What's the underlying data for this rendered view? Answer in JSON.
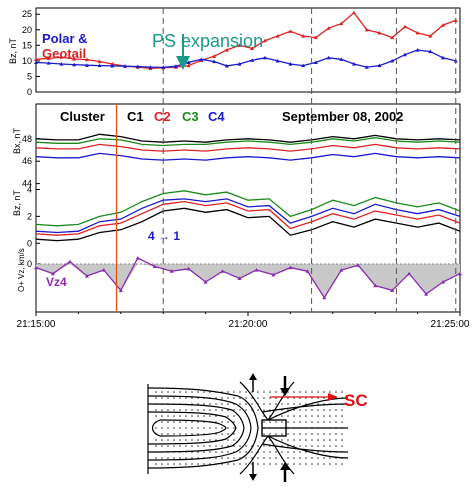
{
  "chart_data": [
    {
      "type": "line",
      "panel": "top",
      "ylabel": "Bz, nT",
      "yticks": [
        "0",
        "5",
        "10",
        "15",
        "20",
        "25"
      ],
      "ylim": [
        0,
        27
      ],
      "legend": [
        {
          "name": "Polar &",
          "color": "#1a1acc"
        },
        {
          "name": "Geotail",
          "color": "#dd2222"
        }
      ],
      "annotation": "PS expansion",
      "arrow_color": "#1a9a8a",
      "series": [
        {
          "name": "Geotail",
          "color": "#dd2222",
          "marker": "triangle",
          "x": [
            0,
            0.3,
            0.6,
            0.9,
            1.2,
            1.5,
            1.8,
            2.1,
            2.4,
            2.7,
            3.0,
            3.3,
            3.6,
            3.9,
            4.2,
            4.5,
            4.8,
            5.1,
            5.4,
            5.7,
            6.0,
            6.3,
            6.6,
            6.9,
            7.2,
            7.5,
            7.8,
            8.1,
            8.4,
            8.7,
            9.0,
            9.3,
            9.6,
            9.9
          ],
          "values": [
            10.5,
            10.8,
            11.2,
            10.6,
            10.4,
            9.8,
            9.0,
            8.3,
            8.0,
            7.6,
            7.8,
            8.0,
            8.5,
            10.2,
            11.5,
            13.5,
            15.0,
            14.0,
            16.5,
            18.0,
            19.5,
            18.0,
            17.5,
            20.5,
            22.0,
            25.5,
            20.0,
            19.0,
            17.5,
            21.0,
            19.0,
            18.0,
            21.5,
            23.0
          ]
        },
        {
          "name": "Polar",
          "color": "#1a1acc",
          "marker": "triangle",
          "x": [
            0,
            0.3,
            0.6,
            0.9,
            1.2,
            1.5,
            1.8,
            2.1,
            2.4,
            2.7,
            3.0,
            3.3,
            3.6,
            3.9,
            4.2,
            4.5,
            4.8,
            5.1,
            5.4,
            5.7,
            6.0,
            6.3,
            6.6,
            6.9,
            7.2,
            7.5,
            7.8,
            8.1,
            8.4,
            8.7,
            9.0,
            9.3,
            9.6,
            9.9
          ],
          "values": [
            9.5,
            9.3,
            9.0,
            8.8,
            8.6,
            8.5,
            8.4,
            8.3,
            8.2,
            8.0,
            7.9,
            8.3,
            9.5,
            10.5,
            9.8,
            8.4,
            9.0,
            10.2,
            11.0,
            10.0,
            9.0,
            8.5,
            9.5,
            11.0,
            10.5,
            9.0,
            8.0,
            8.5,
            10.0,
            12.0,
            13.5,
            13.0,
            11.0,
            10.0
          ]
        }
      ]
    },
    {
      "type": "line",
      "panel": "Bx",
      "title": "Cluster",
      "date": "September  08,  2002",
      "ylabel": "Bx, nT",
      "yticks": [
        "44",
        "46",
        "48"
      ],
      "ylim": [
        44.5,
        49.5
      ],
      "legend": [
        {
          "name": "C1",
          "color": "#000000"
        },
        {
          "name": "C2",
          "color": "#dd2222"
        },
        {
          "name": "C3",
          "color": "#1a8a1a"
        },
        {
          "name": "C4",
          "color": "#1a1acc"
        }
      ],
      "series": [
        {
          "name": "C1",
          "color": "#000000",
          "x": [
            0,
            0.5,
            1,
            1.5,
            2,
            2.5,
            3,
            3.5,
            4,
            4.5,
            5,
            5.5,
            6,
            6.5,
            7,
            7.5,
            8,
            8.5,
            9,
            9.5,
            10
          ],
          "values": [
            48.0,
            47.9,
            47.9,
            48.4,
            48.2,
            47.8,
            47.7,
            47.8,
            47.7,
            47.9,
            48.0,
            47.9,
            47.7,
            47.9,
            48.2,
            48.0,
            48.3,
            48.0,
            47.9,
            48.0,
            47.9
          ]
        },
        {
          "name": "C2",
          "color": "#dd2222",
          "x": [
            0,
            0.5,
            1,
            1.5,
            2,
            2.5,
            3,
            3.5,
            4,
            4.5,
            5,
            5.5,
            6,
            6.5,
            7,
            7.5,
            8,
            8.5,
            9,
            9.5,
            10
          ],
          "values": [
            47.2,
            47.1,
            47.1,
            47.5,
            47.3,
            47.0,
            46.9,
            47.0,
            46.9,
            47.1,
            47.2,
            47.1,
            46.9,
            47.1,
            47.4,
            47.2,
            47.5,
            47.2,
            47.1,
            47.2,
            47.1
          ]
        },
        {
          "name": "C3",
          "color": "#1a8a1a",
          "x": [
            0,
            0.5,
            1,
            1.5,
            2,
            2.5,
            3,
            3.5,
            4,
            4.5,
            5,
            5.5,
            6,
            6.5,
            7,
            7.5,
            8,
            8.5,
            9,
            9.5,
            10
          ],
          "values": [
            47.7,
            47.6,
            47.6,
            48.0,
            47.9,
            47.5,
            47.4,
            47.5,
            47.5,
            47.7,
            47.8,
            47.7,
            47.5,
            47.7,
            48.0,
            47.8,
            48.1,
            47.8,
            47.7,
            47.8,
            47.7
          ]
        },
        {
          "name": "C4",
          "color": "#1a1acc",
          "x": [
            0,
            0.5,
            1,
            1.5,
            2,
            2.5,
            3,
            3.5,
            4,
            4.5,
            5,
            5.5,
            6,
            6.5,
            7,
            7.5,
            8,
            8.5,
            9,
            9.5,
            10
          ],
          "values": [
            46.4,
            46.3,
            46.3,
            46.7,
            46.5,
            46.2,
            46.1,
            46.2,
            46.1,
            46.3,
            46.4,
            46.3,
            46.1,
            46.3,
            46.6,
            46.4,
            46.7,
            46.4,
            46.3,
            46.4,
            46.3
          ]
        }
      ]
    },
    {
      "type": "line",
      "panel": "Bz",
      "ylabel": "Bz, nT",
      "yticks": [
        "0",
        "2",
        "4"
      ],
      "ylim": [
        -0.5,
        5
      ],
      "annotation": "4 → 1",
      "series": [
        {
          "name": "C1",
          "color": "#000000",
          "x": [
            0,
            0.5,
            1,
            1.5,
            2,
            2.5,
            3,
            3.5,
            4,
            4.5,
            5,
            5.5,
            6,
            6.5,
            7,
            7.5,
            8,
            8.5,
            9,
            9.5,
            10
          ],
          "values": [
            0.3,
            0.2,
            0.3,
            0.8,
            1.0,
            1.6,
            2.4,
            2.6,
            2.3,
            2.5,
            1.9,
            2.0,
            0.6,
            1.0,
            1.6,
            1.2,
            1.8,
            1.5,
            1.2,
            1.5,
            0.9
          ]
        },
        {
          "name": "C2",
          "color": "#dd2222",
          "x": [
            0,
            0.5,
            1,
            1.5,
            2,
            2.5,
            3,
            3.5,
            4,
            4.5,
            5,
            5.5,
            6,
            6.5,
            7,
            7.5,
            8,
            8.5,
            9,
            9.5,
            10
          ],
          "values": [
            0.7,
            0.6,
            0.7,
            1.3,
            1.5,
            2.2,
            2.9,
            3.1,
            2.8,
            3.0,
            2.4,
            2.5,
            1.1,
            1.6,
            2.2,
            1.8,
            2.4,
            2.1,
            1.8,
            2.1,
            1.5
          ]
        },
        {
          "name": "C3",
          "color": "#1a8a1a",
          "x": [
            0,
            0.5,
            1,
            1.5,
            2,
            2.5,
            3,
            3.5,
            4,
            4.5,
            5,
            5.5,
            6,
            6.5,
            7,
            7.5,
            8,
            8.5,
            9,
            9.5,
            10
          ],
          "values": [
            1.4,
            1.3,
            1.4,
            2.0,
            2.3,
            3.1,
            3.7,
            3.9,
            3.6,
            3.8,
            3.2,
            3.3,
            2.0,
            2.5,
            3.2,
            2.8,
            3.4,
            3.0,
            2.7,
            3.0,
            2.4
          ]
        },
        {
          "name": "C4",
          "color": "#1a1acc",
          "x": [
            0,
            0.5,
            1,
            1.5,
            2,
            2.5,
            3,
            3.5,
            4,
            4.5,
            5,
            5.5,
            6,
            6.5,
            7,
            7.5,
            8,
            8.5,
            9,
            9.5,
            10
          ],
          "values": [
            0.9,
            0.8,
            0.9,
            1.6,
            1.8,
            2.6,
            3.2,
            3.3,
            3.1,
            3.3,
            2.7,
            2.8,
            1.5,
            2.0,
            2.6,
            2.2,
            2.9,
            2.5,
            2.2,
            2.5,
            2.0
          ]
        }
      ]
    },
    {
      "type": "area",
      "panel": "O+ Vz",
      "ylabel": "O+ Vz, km/s",
      "yticks": [
        "0"
      ],
      "ylim": [
        -4,
        1
      ],
      "label": "Vz4",
      "series": [
        {
          "name": "Vz4",
          "color": "#8a2ab0",
          "fill": "#c8c8c8",
          "x": [
            0,
            0.4,
            0.8,
            1.2,
            1.6,
            2.0,
            2.4,
            2.8,
            3.2,
            3.6,
            4.0,
            4.4,
            4.8,
            5.2,
            5.6,
            6.0,
            6.4,
            6.8,
            7.2,
            7.6,
            8.0,
            8.4,
            8.8,
            9.2,
            9.6,
            10.0
          ],
          "values": [
            -0.3,
            -0.8,
            0.2,
            -1.0,
            -0.5,
            -2.2,
            0.5,
            -0.2,
            -0.6,
            -0.4,
            -1.5,
            -0.6,
            -1.2,
            -0.5,
            -0.9,
            -0.3,
            -0.6,
            -2.8,
            -0.5,
            -0.1,
            -1.8,
            -2.2,
            -0.8,
            -2.5,
            -1.5,
            -0.8
          ]
        }
      ]
    }
  ],
  "x_axis": {
    "ticks": [
      "21:15:00",
      "21:20:00",
      "21:25:00"
    ],
    "xlim": [
      0,
      10
    ]
  },
  "event_lines": {
    "red": 1.9,
    "dashed": [
      3.0,
      6.5,
      8.5,
      9.9
    ]
  },
  "diagram": {
    "label": "SC",
    "label_color": "#dd1111"
  }
}
